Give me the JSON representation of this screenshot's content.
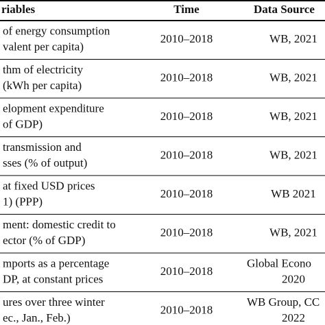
{
  "table": {
    "header": [
      "riables",
      "Time",
      "Data Source"
    ],
    "rows": [
      {
        "variable": [
          "of energy consumption",
          "valent per capita)"
        ],
        "time": "2010–2018",
        "source": [
          "WB, 2021"
        ]
      },
      {
        "variable": [
          "thm of electricity",
          "(kWh per capita)"
        ],
        "time": "2010–2018",
        "source": [
          "WB, 2021"
        ]
      },
      {
        "variable": [
          "elopment expenditure",
          "of GDP)"
        ],
        "time": "2010–2018",
        "source": [
          "WB, 2021"
        ]
      },
      {
        "variable": [
          "transmission and",
          "sses (% of output)"
        ],
        "time": "2010–2018",
        "source": [
          "WB, 2021"
        ]
      },
      {
        "variable": [
          "at fixed USD prices",
          "1) (PPP)"
        ],
        "time": "2010–2018",
        "source": [
          "WB 2021"
        ]
      },
      {
        "variable": [
          "ment: domestic credit to",
          "ector (% of GDP)"
        ],
        "time": "2010–2018",
        "source": [
          "WB, 2021"
        ]
      },
      {
        "variable": [
          "mports as a percentage",
          "DP, at constant prices"
        ],
        "time": "2010–2018",
        "source": [
          "Global Econo",
          "2020"
        ]
      },
      {
        "variable": [
          "ures over three winter",
          "ec., Jan., Feb.)"
        ],
        "time": "2010–2018",
        "source": [
          "WB Group, CC",
          "2022"
        ]
      }
    ]
  }
}
